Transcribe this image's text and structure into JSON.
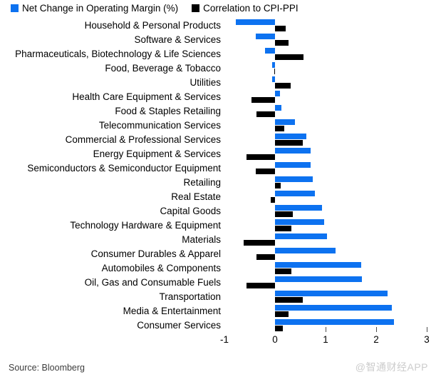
{
  "legend": {
    "items": [
      {
        "label": "Net Change in Operating Margin (%)",
        "color": "#0d72f0"
      },
      {
        "label": "Correlation to CPI-PPI",
        "color": "#000000"
      }
    ]
  },
  "chart_data": {
    "type": "bar",
    "orientation": "horizontal",
    "title": "",
    "xlabel": "",
    "ylabel": "",
    "xlim": [
      -1,
      3.15
    ],
    "x_ticks": [
      -1,
      0,
      1,
      2,
      3
    ],
    "tick_marks": [
      1,
      2,
      3
    ],
    "grid": false,
    "legend_position": "top",
    "categories": [
      "Household & Personal Products",
      "Software & Services",
      "Pharmaceuticals, Biotechnology & Life Sciences",
      "Food, Beverage & Tobacco",
      "Utilities",
      "Health Care Equipment & Services",
      "Food & Staples Retailing",
      "Telecommunication Services",
      "Commercial & Professional Services",
      "Energy Equipment & Services",
      "Semiconductors & Semiconductor Equipment",
      "Retailing",
      "Real Estate",
      "Capital Goods",
      "Technology Hardware & Equipment",
      "Materials",
      "Consumer Durables & Apparel",
      "Automobiles & Components",
      "Oil, Gas and Consumable Fuels",
      "Transportation",
      "Media & Entertainment",
      "Consumer Services"
    ],
    "series": [
      {
        "name": "Net Change in Operating Margin (%)",
        "color": "#0d72f0",
        "values": [
          -0.78,
          -0.38,
          -0.2,
          -0.06,
          -0.05,
          0.1,
          0.12,
          0.39,
          0.62,
          0.7,
          0.7,
          0.75,
          0.79,
          0.93,
          0.97,
          1.03,
          1.2,
          1.71,
          1.72,
          2.22,
          2.31,
          2.35
        ]
      },
      {
        "name": "Correlation to CPI-PPI",
        "color": "#000000",
        "values": [
          0.21,
          0.27,
          0.56,
          -0.02,
          0.31,
          -0.46,
          -0.36,
          0.18,
          0.55,
          -0.56,
          -0.38,
          0.11,
          -0.08,
          0.35,
          0.33,
          -0.62,
          -0.36,
          0.33,
          -0.56,
          0.55,
          0.27,
          0.16
        ]
      }
    ]
  },
  "footer": {
    "source": "Source: Bloomberg",
    "watermark": "@智通财经APP"
  }
}
